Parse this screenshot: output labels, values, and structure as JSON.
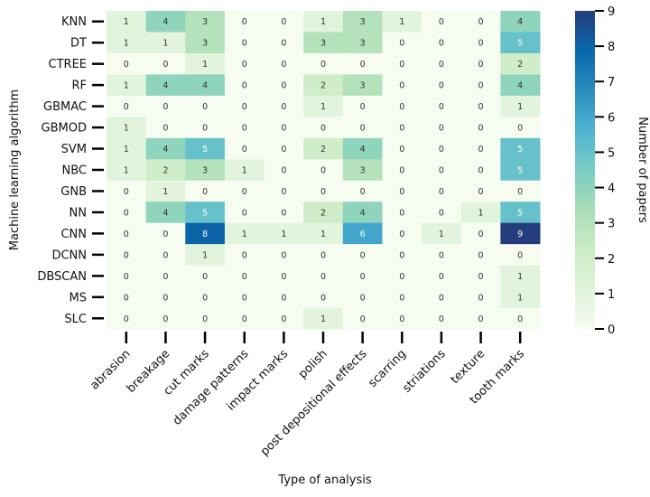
{
  "chart_data": {
    "type": "heatmap",
    "xlabel": "Type of analysis",
    "ylabel": "Machine learning algorithm",
    "colorbar_label": "Number of papers",
    "colorbar_range": [
      0,
      9
    ],
    "colorbar_ticks": [
      0,
      1,
      2,
      3,
      4,
      5,
      6,
      7,
      8,
      9
    ],
    "colormap": "GnBu-like (light green to dark blue)",
    "columns": [
      "abrasion",
      "breakage",
      "cut marks",
      "damage patterns",
      "impact marks",
      "polish",
      "post depositional effects",
      "scarring",
      "striations",
      "texture",
      "tooth marks"
    ],
    "rows": [
      "KNN",
      "DT",
      "CTREE",
      "RF",
      "GBMAC",
      "GBMOD",
      "SVM",
      "NBC",
      "GNB",
      "NN",
      "CNN",
      "DCNN",
      "DBSCAN",
      "MS",
      "SLC"
    ],
    "values": [
      [
        1,
        4,
        3,
        0,
        0,
        1,
        3,
        1,
        0,
        0,
        4
      ],
      [
        1,
        1,
        3,
        0,
        0,
        3,
        3,
        0,
        0,
        0,
        5
      ],
      [
        0,
        0,
        1,
        0,
        0,
        0,
        0,
        0,
        0,
        0,
        2
      ],
      [
        1,
        4,
        4,
        0,
        0,
        2,
        3,
        0,
        0,
        0,
        4
      ],
      [
        0,
        0,
        0,
        0,
        0,
        1,
        0,
        0,
        0,
        0,
        1
      ],
      [
        1,
        0,
        0,
        0,
        0,
        0,
        0,
        0,
        0,
        0,
        0
      ],
      [
        1,
        4,
        5,
        0,
        0,
        2,
        4,
        0,
        0,
        0,
        5
      ],
      [
        1,
        2,
        3,
        1,
        0,
        0,
        3,
        0,
        0,
        0,
        5
      ],
      [
        0,
        1,
        0,
        0,
        0,
        0,
        0,
        0,
        0,
        0,
        0
      ],
      [
        0,
        4,
        5,
        0,
        0,
        2,
        4,
        0,
        0,
        1,
        5
      ],
      [
        0,
        0,
        8,
        1,
        1,
        1,
        6,
        0,
        1,
        0,
        9
      ],
      [
        0,
        0,
        1,
        0,
        0,
        0,
        0,
        0,
        0,
        0,
        0
      ],
      [
        0,
        0,
        0,
        0,
        0,
        0,
        0,
        0,
        0,
        0,
        1
      ],
      [
        0,
        0,
        0,
        0,
        0,
        0,
        0,
        0,
        0,
        0,
        1
      ],
      [
        0,
        0,
        0,
        0,
        0,
        1,
        0,
        0,
        0,
        0,
        0
      ]
    ],
    "grid": false
  }
}
